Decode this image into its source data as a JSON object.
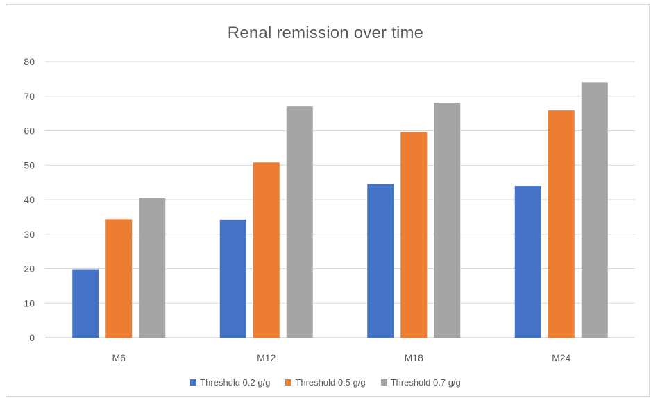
{
  "chart_data": {
    "type": "bar",
    "title": "Renal remission over time",
    "categories": [
      "M6",
      "M12",
      "M18",
      "M24"
    ],
    "series": [
      {
        "name": "Threshold 0.2 g/g",
        "color": "#4472c4",
        "values": [
          19.8,
          34.2,
          44.5,
          44
        ]
      },
      {
        "name": "Threshold 0.5 g/g",
        "color": "#ed7d31",
        "values": [
          34.3,
          50.8,
          59.6,
          65.9
        ]
      },
      {
        "name": "Threshold 0.7 g/g",
        "color": "#a5a5a5",
        "values": [
          40.6,
          67.1,
          68.1,
          74.1
        ]
      }
    ],
    "ylim": [
      0,
      80
    ],
    "yticks": [
      "0",
      "10",
      "20",
      "30",
      "40",
      "50",
      "60",
      "70",
      "80"
    ],
    "grid": true,
    "legend_position": "bottom"
  }
}
